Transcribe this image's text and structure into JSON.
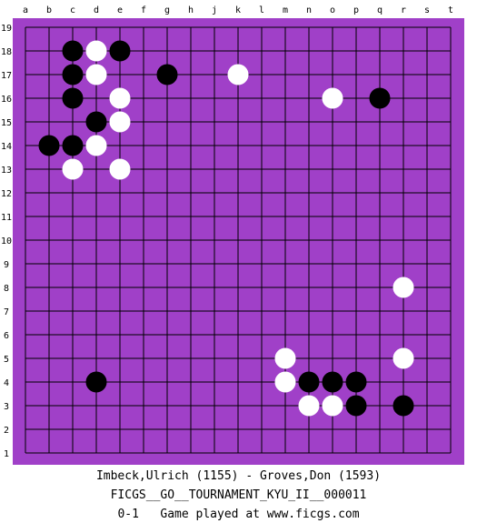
{
  "board": {
    "size": 19,
    "column_labels": [
      "a",
      "b",
      "c",
      "d",
      "e",
      "f",
      "g",
      "h",
      "j",
      "k",
      "l",
      "m",
      "n",
      "o",
      "p",
      "q",
      "r",
      "s",
      "t"
    ],
    "row_labels": [
      "19",
      "18",
      "17",
      "16",
      "15",
      "14",
      "13",
      "12",
      "11",
      "10",
      "9",
      "8",
      "7",
      "6",
      "5",
      "4",
      "3",
      "2",
      "1"
    ],
    "colors": {
      "background": "#a040c8",
      "lines": "#000000",
      "black_stone": "#000000",
      "white_stone": "#ffffff"
    },
    "stones": [
      {
        "color": "black",
        "point": "c18"
      },
      {
        "color": "white",
        "point": "d18"
      },
      {
        "color": "black",
        "point": "e18"
      },
      {
        "color": "black",
        "point": "c17"
      },
      {
        "color": "white",
        "point": "d17"
      },
      {
        "color": "black",
        "point": "g17"
      },
      {
        "color": "white",
        "point": "k17"
      },
      {
        "color": "black",
        "point": "c16"
      },
      {
        "color": "white",
        "point": "e16"
      },
      {
        "color": "white",
        "point": "o16"
      },
      {
        "color": "black",
        "point": "q16"
      },
      {
        "color": "black",
        "point": "d15"
      },
      {
        "color": "white",
        "point": "e15"
      },
      {
        "color": "black",
        "point": "b14"
      },
      {
        "color": "black",
        "point": "c14"
      },
      {
        "color": "white",
        "point": "d14"
      },
      {
        "color": "white",
        "point": "c13"
      },
      {
        "color": "white",
        "point": "e13"
      },
      {
        "color": "white",
        "point": "r8"
      },
      {
        "color": "white",
        "point": "m5"
      },
      {
        "color": "white",
        "point": "r5"
      },
      {
        "color": "black",
        "point": "d4"
      },
      {
        "color": "white",
        "point": "m4"
      },
      {
        "color": "black",
        "point": "n4"
      },
      {
        "color": "black",
        "point": "o4"
      },
      {
        "color": "black",
        "point": "p4"
      },
      {
        "color": "white",
        "point": "n3"
      },
      {
        "color": "white",
        "point": "o3"
      },
      {
        "color": "black",
        "point": "p3"
      },
      {
        "color": "black",
        "point": "r3"
      }
    ]
  },
  "caption": {
    "players": "Imbeck,Ulrich (1155) - Groves,Don (1593)",
    "tournament": "FICGS__GO__TOURNAMENT_KYU_II__000011",
    "result_line": "0-1   Game played at www.ficgs.com"
  }
}
